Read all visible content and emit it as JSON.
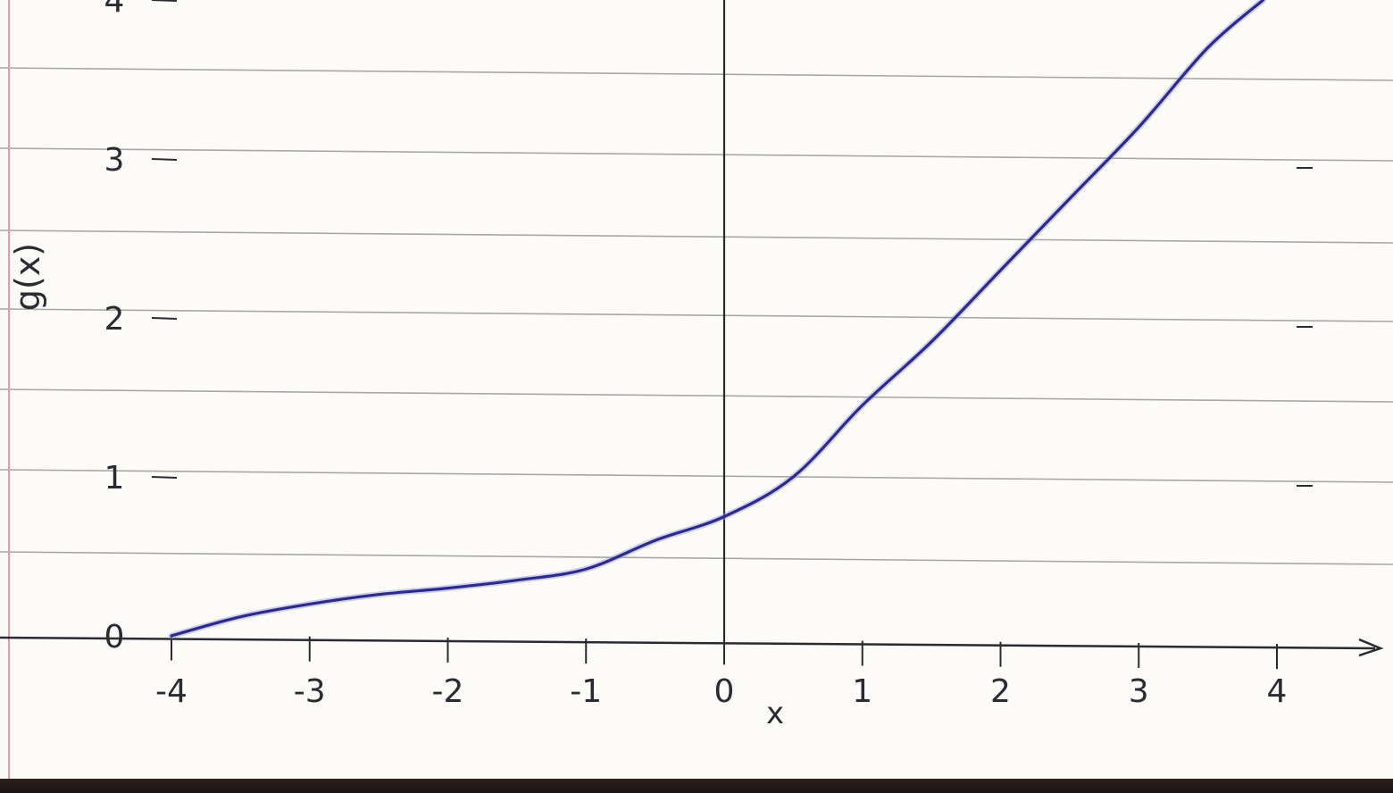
{
  "chart_data": {
    "type": "line",
    "title": "",
    "xlabel": "x",
    "ylabel": "g(x)",
    "xlim": [
      -4,
      4
    ],
    "ylim": [
      0,
      4
    ],
    "x_ticks": [
      -4,
      -3,
      -2,
      -1,
      0,
      1,
      2,
      3,
      4
    ],
    "x_tick_labels": [
      "-4",
      "-3",
      "-2",
      "-1",
      "0",
      "1",
      "2",
      "3",
      "4"
    ],
    "y_ticks": [
      0,
      1,
      2,
      3,
      4
    ],
    "y_tick_labels": [
      "0",
      "1",
      "2",
      "3",
      "4"
    ],
    "grid": false,
    "series": [
      {
        "color": "#2c2a8a",
        "points": [
          {
            "x": -4.0,
            "y": 0.0
          },
          {
            "x": -3.5,
            "y": 0.12
          },
          {
            "x": -3.0,
            "y": 0.2
          },
          {
            "x": -2.5,
            "y": 0.26
          },
          {
            "x": -2.0,
            "y": 0.3
          },
          {
            "x": -1.5,
            "y": 0.35
          },
          {
            "x": -1.0,
            "y": 0.42
          },
          {
            "x": -0.5,
            "y": 0.6
          },
          {
            "x": 0.0,
            "y": 0.75
          },
          {
            "x": 0.5,
            "y": 1.0
          },
          {
            "x": 1.0,
            "y": 1.45
          },
          {
            "x": 1.5,
            "y": 1.85
          },
          {
            "x": 2.0,
            "y": 2.3
          },
          {
            "x": 2.5,
            "y": 2.75
          },
          {
            "x": 3.0,
            "y": 3.2
          },
          {
            "x": 3.5,
            "y": 3.7
          },
          {
            "x": 3.9,
            "y": 4.0
          }
        ]
      }
    ]
  },
  "colors": {
    "paper": "#fcfbf7",
    "ruled_line": "#8c8c8c",
    "margin_line": "#e79aa6",
    "ink": "#2a2a33",
    "curve": "#2c2a8a"
  }
}
